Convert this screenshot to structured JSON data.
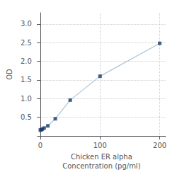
{
  "chart_data": {
    "type": "line",
    "xlabel": "Chicken ER alpha\nConcentration (pg/ml)",
    "ylabel": "OD",
    "x": [
      0,
      1.563,
      3.125,
      6.25,
      12.5,
      25,
      50,
      100,
      200
    ],
    "series": [
      {
        "type": "line",
        "color": "#aac4d8",
        "values": [
          0.158,
          0.168,
          0.183,
          0.21,
          0.27,
          0.46,
          0.96,
          1.6,
          2.48
        ]
      },
      {
        "type": "scatter",
        "color": "#1a3a6b",
        "marker": "square",
        "values": [
          0.158,
          0.168,
          0.183,
          0.21,
          0.27,
          0.46,
          0.96,
          1.6,
          2.48
        ]
      }
    ],
    "xlim": [
      -5,
      210
    ],
    "xticks": [
      0,
      100,
      200
    ],
    "ylim": [
      0.0,
      3.3
    ],
    "yticks": [
      0.5,
      {
        "value": 1.0,
        "label": "1.0"
      },
      1.5,
      {
        "value": 2.0,
        "label": "2.0"
      },
      2.5,
      {
        "value": 3.0,
        "label": "3.0"
      }
    ],
    "grid": true
  }
}
